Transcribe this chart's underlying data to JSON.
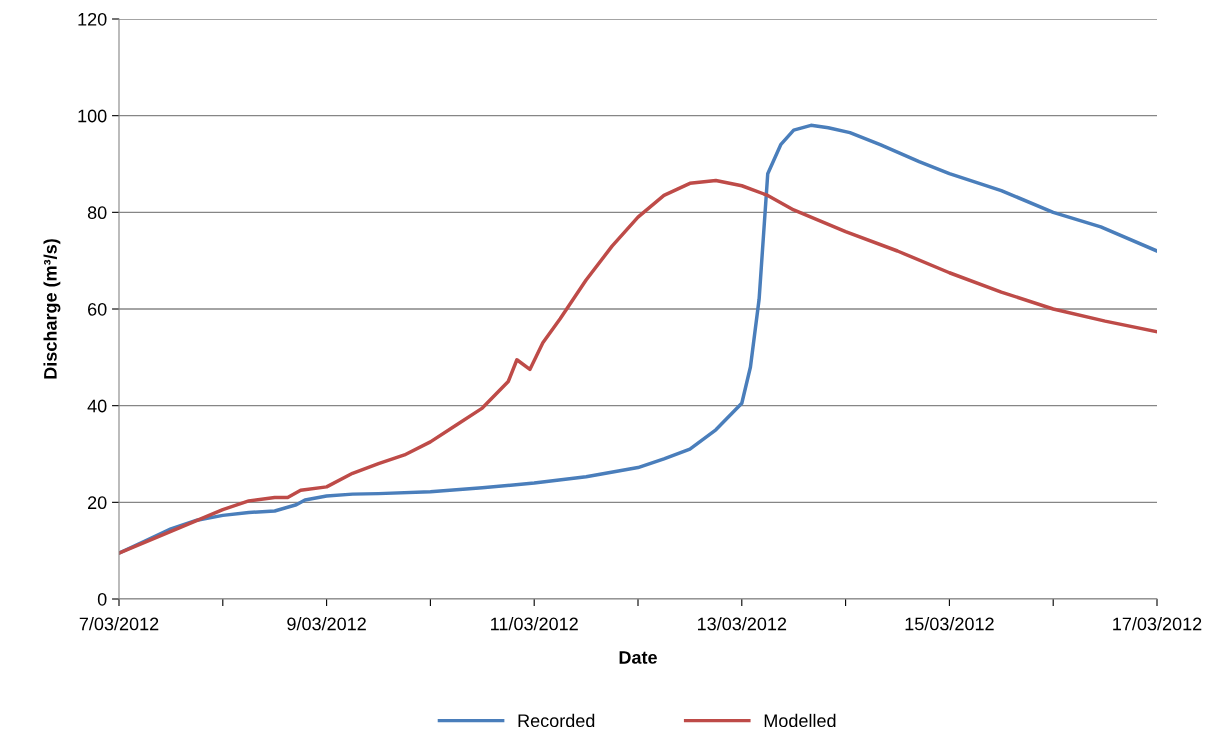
{
  "chart_data": {
    "type": "line",
    "xlabel": "Date",
    "ylabel": "Discharge (m³/s)",
    "xlim": [
      "2012-03-07",
      "2012-03-17"
    ],
    "xticks": [
      {
        "value": "2012-03-07",
        "label": "7/03/2012"
      },
      {
        "value": "2012-03-08",
        "label": null
      },
      {
        "value": "2012-03-09",
        "label": "9/03/2012"
      },
      {
        "value": "2012-03-10",
        "label": null
      },
      {
        "value": "2012-03-11",
        "label": "11/03/2012"
      },
      {
        "value": "2012-03-12",
        "label": null
      },
      {
        "value": "2012-03-13",
        "label": "13/03/2012"
      },
      {
        "value": "2012-03-14",
        "label": null
      },
      {
        "value": "2012-03-15",
        "label": "15/03/2012"
      },
      {
        "value": "2012-03-16",
        "label": null
      },
      {
        "value": "2012-03-17",
        "label": "17/03/2012"
      }
    ],
    "ylim": [
      0,
      120
    ],
    "yticks": [
      0,
      20,
      40,
      60,
      80,
      100,
      120
    ],
    "grid": "y",
    "legend": "bottom",
    "marker": "none",
    "line_style": "solid",
    "series": [
      {
        "name": "Recorded",
        "color": "#4a7ebb",
        "x": [
          "2012-03-07T00:00",
          "2012-03-07T06:00",
          "2012-03-07T12:00",
          "2012-03-07T18:00",
          "2012-03-08T00:00",
          "2012-03-08T06:00",
          "2012-03-08T12:00",
          "2012-03-08T17:00",
          "2012-03-08T19:00",
          "2012-03-09T00:00",
          "2012-03-09T06:00",
          "2012-03-09T12:00",
          "2012-03-10T00:00",
          "2012-03-10T12:00",
          "2012-03-11T00:00",
          "2012-03-11T12:00",
          "2012-03-12T00:00",
          "2012-03-12T06:00",
          "2012-03-12T12:00",
          "2012-03-12T18:00",
          "2012-03-13T00:00",
          "2012-03-13T02:00",
          "2012-03-13T04:00",
          "2012-03-13T05:00",
          "2012-03-13T06:00",
          "2012-03-13T09:00",
          "2012-03-13T12:00",
          "2012-03-13T16:00",
          "2012-03-13T20:00",
          "2012-03-14T01:00",
          "2012-03-14T08:00",
          "2012-03-14T17:00",
          "2012-03-15T00:00",
          "2012-03-15T12:00",
          "2012-03-16T00:00",
          "2012-03-16T11:00",
          "2012-03-17T00:00"
        ],
        "values": [
          9.5,
          12,
          14.5,
          16.3,
          17.3,
          17.9,
          18.2,
          19.5,
          20.5,
          21.3,
          21.7,
          21.8,
          22.2,
          23,
          24,
          25.3,
          27.2,
          29,
          31,
          35,
          40.5,
          48,
          62,
          75,
          88,
          94,
          97,
          98,
          97.5,
          96.5,
          94,
          90.5,
          88,
          84.5,
          80,
          77,
          72
        ]
      },
      {
        "name": "Modelled",
        "color": "#be4b48",
        "x": [
          "2012-03-07T00:00",
          "2012-03-07T12:00",
          "2012-03-08T00:00",
          "2012-03-08T06:00",
          "2012-03-08T12:00",
          "2012-03-08T15:00",
          "2012-03-08T18:00",
          "2012-03-09T00:00",
          "2012-03-09T06:00",
          "2012-03-09T12:00",
          "2012-03-09T18:00",
          "2012-03-10T00:00",
          "2012-03-10T06:00",
          "2012-03-10T12:00",
          "2012-03-10T18:00",
          "2012-03-10T20:00",
          "2012-03-10T23:00",
          "2012-03-11T02:00",
          "2012-03-11T06:00",
          "2012-03-11T12:00",
          "2012-03-11T18:00",
          "2012-03-12T00:00",
          "2012-03-12T06:00",
          "2012-03-12T12:00",
          "2012-03-12T18:00",
          "2012-03-13T00:00",
          "2012-03-13T06:00",
          "2012-03-13T12:00",
          "2012-03-14T00:00",
          "2012-03-14T12:00",
          "2012-03-15T00:00",
          "2012-03-15T12:00",
          "2012-03-16T00:00",
          "2012-03-16T12:00",
          "2012-03-17T00:00"
        ],
        "values": [
          9.5,
          14,
          18.5,
          20.3,
          21,
          21,
          22.5,
          23.2,
          26,
          28,
          29.8,
          32.5,
          36,
          39.5,
          45,
          49.5,
          47.5,
          53,
          58,
          66,
          73,
          79,
          83.5,
          86,
          86.6,
          85.5,
          83.5,
          80.5,
          76,
          72,
          67.5,
          63.5,
          60,
          57.5,
          55.3
        ]
      }
    ]
  }
}
